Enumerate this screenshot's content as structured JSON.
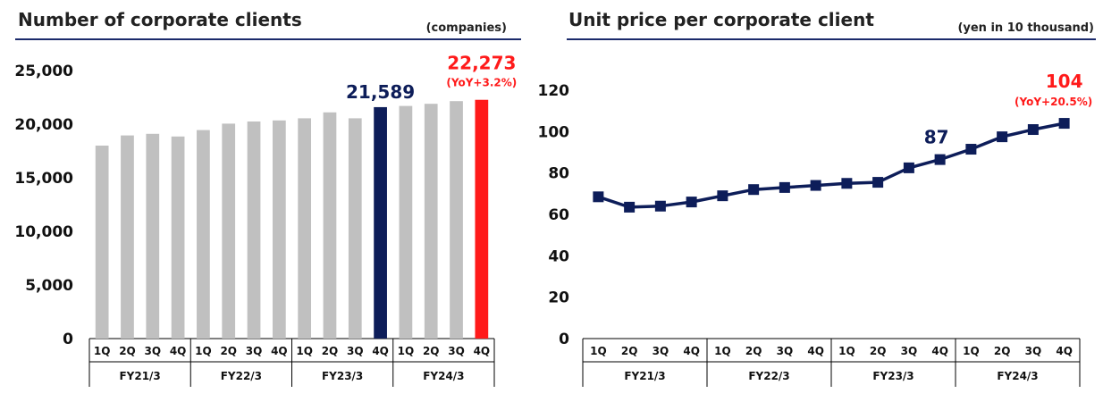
{
  "colors": {
    "bar": "#c0c0c0",
    "highlight_navy": "#0d1d59",
    "highlight_red": "#ff1a1a",
    "line": "#0d1d59",
    "title_rule": "#1b2a6b"
  },
  "chart_data": [
    {
      "type": "bar",
      "title": "Number of corporate clients",
      "unit_label": "(companies)",
      "categories": [
        "1Q",
        "2Q",
        "3Q",
        "4Q",
        "1Q",
        "2Q",
        "3Q",
        "4Q",
        "1Q",
        "2Q",
        "3Q",
        "4Q",
        "1Q",
        "2Q",
        "3Q",
        "4Q"
      ],
      "groups": [
        "FY21/3",
        "FY22/3",
        "FY23/3",
        "FY24/3"
      ],
      "values": [
        18000,
        18950,
        19100,
        18850,
        19450,
        20050,
        20250,
        20350,
        20550,
        21100,
        20550,
        21589,
        21700,
        21900,
        22150,
        22273
      ],
      "ylim": [
        0,
        25000
      ],
      "yticks": [
        "0",
        "5,000",
        "10,000",
        "15,000",
        "20,000",
        "25,000"
      ],
      "annotations": [
        {
          "index": 11,
          "value_label": "21,589",
          "color": "#0d1d59"
        },
        {
          "index": 15,
          "value_label": "22,273",
          "yoy_label": "(YoY+3.2%)",
          "color": "#ff1a1a"
        }
      ]
    },
    {
      "type": "line",
      "title": "Unit price per corporate client",
      "unit_label": "(yen in 10 thousand)",
      "categories": [
        "1Q",
        "2Q",
        "3Q",
        "4Q",
        "1Q",
        "2Q",
        "3Q",
        "4Q",
        "1Q",
        "2Q",
        "3Q",
        "4Q",
        "1Q",
        "2Q",
        "3Q",
        "4Q"
      ],
      "groups": [
        "FY21/3",
        "FY22/3",
        "FY23/3",
        "FY24/3"
      ],
      "values": [
        68.5,
        63.5,
        64,
        66,
        69,
        72,
        73,
        74,
        75,
        75.5,
        82.5,
        86.5,
        91.5,
        97.5,
        101,
        104
      ],
      "ylim": [
        0,
        120
      ],
      "yticks": [
        "0",
        "20",
        "40",
        "60",
        "80",
        "100",
        "120"
      ],
      "annotations": [
        {
          "index": 11,
          "value_label": "87",
          "color": "#0d1d59"
        },
        {
          "index": 15,
          "value_label": "104",
          "yoy_label": "(YoY+20.5%)",
          "color": "#ff1a1a"
        }
      ]
    }
  ]
}
